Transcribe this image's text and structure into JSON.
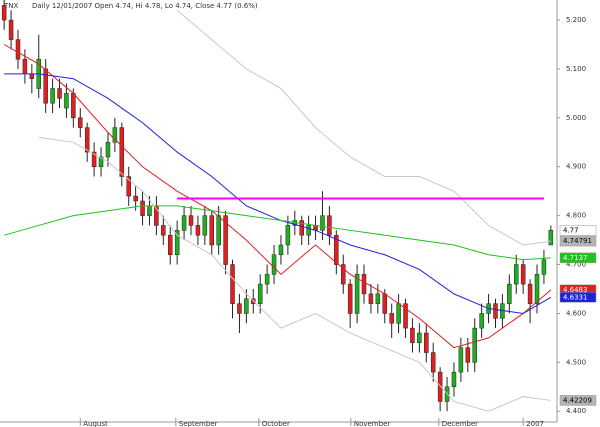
{
  "chart_data": {
    "type": "candlestick",
    "symbol": "TNX",
    "title": "Daily 12/01/2007 Open 4.74, Hi 4.78, Lo 4.74, Close 4.77 (0.6%)",
    "up_color": "#1fae1f",
    "down_color": "#e02020",
    "open": [
      5.23,
      5.2,
      5.16,
      5.12,
      5.09,
      5.06,
      5.1,
      5.03,
      5.06,
      5.02,
      5.05,
      5.0,
      4.98,
      4.93,
      4.9,
      4.92,
      4.95,
      4.98,
      4.88,
      4.84,
      4.83,
      4.8,
      4.82,
      4.78,
      4.76,
      4.72,
      4.77,
      4.8,
      4.78,
      4.76,
      4.8,
      4.74,
      4.8,
      4.7,
      4.62,
      4.6,
      4.63,
      4.62,
      4.66,
      4.68,
      4.72,
      4.74,
      4.78,
      4.79,
      4.76,
      4.78,
      4.77,
      4.8,
      4.76,
      4.7,
      4.66,
      4.6,
      4.68,
      4.64,
      4.62,
      4.64,
      4.6,
      4.58,
      4.62,
      4.57,
      4.54,
      4.56,
      4.52,
      4.48,
      4.42,
      4.45,
      4.48,
      4.53,
      4.5,
      4.57,
      4.6,
      4.62,
      4.59,
      4.62,
      4.66,
      4.7,
      4.66,
      4.62,
      4.68,
      4.74
    ],
    "high": [
      5.25,
      5.22,
      5.18,
      5.14,
      5.11,
      5.17,
      5.12,
      5.08,
      5.08,
      5.07,
      5.06,
      5.02,
      4.99,
      4.95,
      4.94,
      4.97,
      5.0,
      4.99,
      4.9,
      4.86,
      4.85,
      4.84,
      4.84,
      4.8,
      4.78,
      4.79,
      4.82,
      4.82,
      4.8,
      4.82,
      4.81,
      4.82,
      4.81,
      4.71,
      4.64,
      4.65,
      4.65,
      4.68,
      4.7,
      4.74,
      4.76,
      4.8,
      4.81,
      4.8,
      4.8,
      4.8,
      4.85,
      4.82,
      4.77,
      4.72,
      4.67,
      4.7,
      4.7,
      4.66,
      4.66,
      4.65,
      4.62,
      4.64,
      4.63,
      4.59,
      4.58,
      4.58,
      4.54,
      4.49,
      4.47,
      4.5,
      4.55,
      4.55,
      4.59,
      4.62,
      4.64,
      4.63,
      4.64,
      4.68,
      4.72,
      4.71,
      4.67,
      4.7,
      4.73,
      4.78
    ],
    "low": [
      5.18,
      5.14,
      5.1,
      5.07,
      5.05,
      5.04,
      5.01,
      5.01,
      5.02,
      5.0,
      4.98,
      4.96,
      4.91,
      4.88,
      4.88,
      4.9,
      4.93,
      4.86,
      4.82,
      4.81,
      4.78,
      4.78,
      4.76,
      4.74,
      4.7,
      4.7,
      4.75,
      4.76,
      4.74,
      4.74,
      4.72,
      4.72,
      4.68,
      4.59,
      4.56,
      4.58,
      4.6,
      4.6,
      4.64,
      4.66,
      4.7,
      4.72,
      4.76,
      4.74,
      4.74,
      4.75,
      4.75,
      4.74,
      4.68,
      4.64,
      4.57,
      4.58,
      4.62,
      4.6,
      4.6,
      4.58,
      4.55,
      4.56,
      4.55,
      4.52,
      4.52,
      4.5,
      4.46,
      4.4,
      4.4,
      4.43,
      4.46,
      4.48,
      4.48,
      4.55,
      4.58,
      4.57,
      4.57,
      4.6,
      4.64,
      4.64,
      4.58,
      4.6,
      4.66,
      4.74
    ],
    "close": [
      5.2,
      5.16,
      5.12,
      5.09,
      5.08,
      5.12,
      5.03,
      5.06,
      5.04,
      5.05,
      5.0,
      4.98,
      4.93,
      4.9,
      4.92,
      4.95,
      4.98,
      4.88,
      4.84,
      4.83,
      4.8,
      4.82,
      4.78,
      4.76,
      4.72,
      4.77,
      4.8,
      4.78,
      4.76,
      4.8,
      4.74,
      4.8,
      4.7,
      4.62,
      4.6,
      4.63,
      4.62,
      4.66,
      4.68,
      4.72,
      4.74,
      4.78,
      4.79,
      4.76,
      4.78,
      4.77,
      4.8,
      4.76,
      4.7,
      4.66,
      4.6,
      4.68,
      4.64,
      4.62,
      4.64,
      4.6,
      4.58,
      4.62,
      4.57,
      4.54,
      4.56,
      4.52,
      4.48,
      4.42,
      4.45,
      4.48,
      4.53,
      4.5,
      4.57,
      4.6,
      4.62,
      4.59,
      4.62,
      4.66,
      4.7,
      4.66,
      4.62,
      4.68,
      4.71,
      4.77
    ],
    "close_flag_color": "#ffffff",
    "overlays": [
      {
        "color": "#e02020",
        "x": [
          0,
          5,
          10,
          15,
          20,
          25,
          30,
          35,
          40,
          45,
          50,
          55,
          60,
          65,
          70,
          75,
          79
        ],
        "values": [
          5.15,
          5.11,
          5.05,
          4.97,
          4.9,
          4.85,
          4.81,
          4.75,
          4.68,
          4.74,
          4.68,
          4.64,
          4.59,
          4.53,
          4.55,
          4.6,
          4.6483
        ],
        "flag": true
      },
      {
        "color": "#2020e0",
        "x": [
          0,
          5,
          10,
          15,
          20,
          25,
          30,
          35,
          40,
          45,
          50,
          55,
          60,
          65,
          70,
          75,
          79
        ],
        "values": [
          5.09,
          5.09,
          5.08,
          5.04,
          4.99,
          4.93,
          4.88,
          4.82,
          4.79,
          4.77,
          4.74,
          4.72,
          4.69,
          4.64,
          4.61,
          4.6,
          4.6331
        ],
        "flag": true
      },
      {
        "color": "#20c020",
        "x": [
          0,
          5,
          10,
          15,
          20,
          25,
          30,
          35,
          40,
          45,
          50,
          55,
          60,
          65,
          70,
          75,
          79
        ],
        "values": [
          4.76,
          4.78,
          4.8,
          4.81,
          4.82,
          4.82,
          4.81,
          4.8,
          4.79,
          4.78,
          4.77,
          4.76,
          4.75,
          4.74,
          4.72,
          4.71,
          4.7137
        ],
        "flag": true
      },
      {
        "color": "#c8c8c8",
        "x": [
          0,
          5,
          10,
          15,
          20,
          25,
          30,
          35,
          40,
          45,
          50,
          55,
          60,
          65,
          70,
          75,
          79
        ],
        "values": [
          null,
          null,
          null,
          null,
          null,
          5.22,
          5.16,
          5.1,
          5.06,
          4.98,
          4.92,
          4.88,
          4.88,
          4.85,
          4.78,
          4.74,
          4.74791
        ],
        "flag": true,
        "flag_color": "#b4b4b4"
      },
      {
        "color": "#c8c8c8",
        "x": [
          0,
          5,
          10,
          15,
          20,
          25,
          30,
          35,
          40,
          45,
          50,
          55,
          60,
          65,
          70,
          75,
          79
        ],
        "values": [
          null,
          4.96,
          4.95,
          4.91,
          4.85,
          4.76,
          4.72,
          4.64,
          4.57,
          4.6,
          4.56,
          4.53,
          4.5,
          4.42,
          4.4,
          4.43,
          4.42209
        ],
        "flag": true,
        "flag_color": "#b4b4b4"
      },
      {
        "color": "#ff00ff",
        "x": [
          25,
          78
        ],
        "values": [
          4.835,
          4.835
        ],
        "width": 2
      }
    ],
    "xlim": [
      -0.6,
      79.6
    ],
    "xticks": [
      {
        "value": 11,
        "label": "August"
      },
      {
        "value": 24.8,
        "label": "September"
      },
      {
        "value": 36.8,
        "label": "October"
      },
      {
        "value": 50.1,
        "label": "November"
      },
      {
        "value": 62.8,
        "label": "December"
      },
      {
        "value": 75,
        "label": "2007"
      }
    ],
    "ylim": [
      4.378,
      5.241
    ],
    "yticks": [
      {
        "value": 4.4,
        "label": "4.400"
      },
      {
        "value": 4.5,
        "label": "4.500"
      },
      {
        "value": 4.6,
        "label": "4.600"
      },
      {
        "value": 4.7,
        "label": "4.700"
      },
      {
        "value": 4.8,
        "label": "4.800"
      },
      {
        "value": 4.9,
        "label": "4.900"
      },
      {
        "value": 5.0,
        "label": "5.000"
      },
      {
        "value": 5.1,
        "label": "5.100"
      },
      {
        "value": 5.2,
        "label": "5.200"
      }
    ]
  }
}
